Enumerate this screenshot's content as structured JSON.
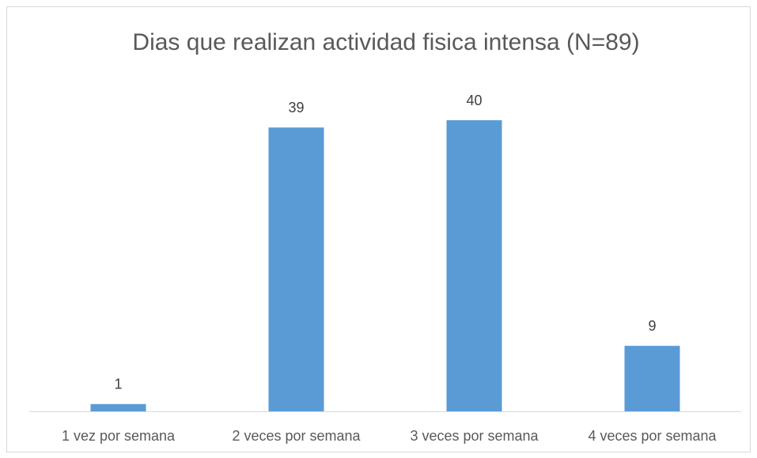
{
  "chart_data": {
    "type": "bar",
    "title": "Dias que realizan actividad fisica intensa (N=89)",
    "categories": [
      "1 vez por semana",
      "2 veces por semana",
      "3 veces por semana",
      "4 veces por semana"
    ],
    "values": [
      1,
      39,
      40,
      9
    ],
    "color": "#5b9bd5",
    "grid": false
  }
}
